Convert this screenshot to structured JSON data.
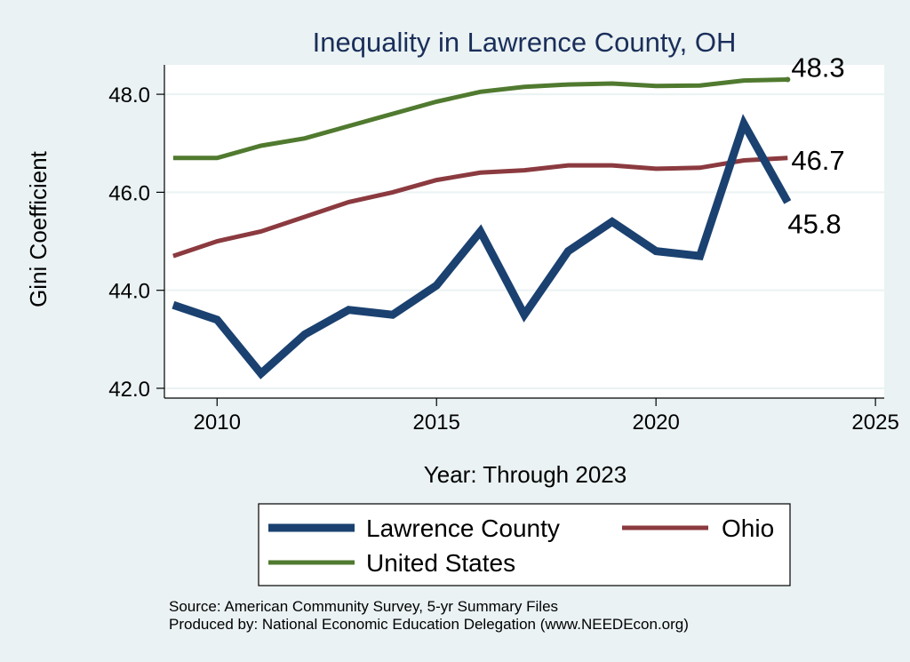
{
  "chart_data": {
    "type": "line",
    "title": "Inequality in Lawrence County, OH",
    "xlabel": "Year: Through 2023",
    "ylabel": "Gini Coefficient",
    "xlim": [
      2008.8,
      2025.2
    ],
    "ylim": [
      41.8,
      48.6
    ],
    "xticks": [
      2010,
      2015,
      2020,
      2025
    ],
    "yticks": [
      42,
      44,
      46,
      48
    ],
    "ytick_labels": [
      "42.0",
      "44.0",
      "46.0",
      "48.0"
    ],
    "x": [
      2009,
      2010,
      2011,
      2012,
      2013,
      2014,
      2015,
      2016,
      2017,
      2018,
      2019,
      2020,
      2021,
      2022,
      2023
    ],
    "series": [
      {
        "name": "Lawrence County",
        "color": "#1a4170",
        "width": "thick",
        "values": [
          43.7,
          43.4,
          42.3,
          43.1,
          43.6,
          43.5,
          44.1,
          45.2,
          43.5,
          44.8,
          45.4,
          44.8,
          44.7,
          47.4,
          45.8
        ],
        "end_label": "45.8"
      },
      {
        "name": "Ohio",
        "color": "#8b3a3f",
        "width": "medium",
        "values": [
          44.7,
          45.0,
          45.2,
          45.5,
          45.8,
          46.0,
          46.25,
          46.4,
          46.45,
          46.55,
          46.55,
          46.48,
          46.5,
          46.65,
          46.7
        ],
        "end_label": "46.7"
      },
      {
        "name": "United States",
        "color": "#507a2f",
        "width": "medium",
        "values": [
          46.7,
          46.7,
          46.95,
          47.1,
          47.35,
          47.6,
          47.85,
          48.05,
          48.15,
          48.2,
          48.22,
          48.17,
          48.18,
          48.28,
          48.3
        ],
        "end_label": "48.3"
      }
    ],
    "legend": {
      "placement": "bottom",
      "entries": [
        "Lawrence County",
        "Ohio",
        "United States"
      ]
    },
    "notes": [
      "Source: American Community Survey, 5-yr Summary Files",
      "Produced by: National Economic Education Delegation (www.NEEDEcon.org)"
    ],
    "colors": {
      "background": "#eaf2f3",
      "plot_background": "#ffffff",
      "grid": "#eaf2f3",
      "title": "#1a2e5a"
    }
  }
}
